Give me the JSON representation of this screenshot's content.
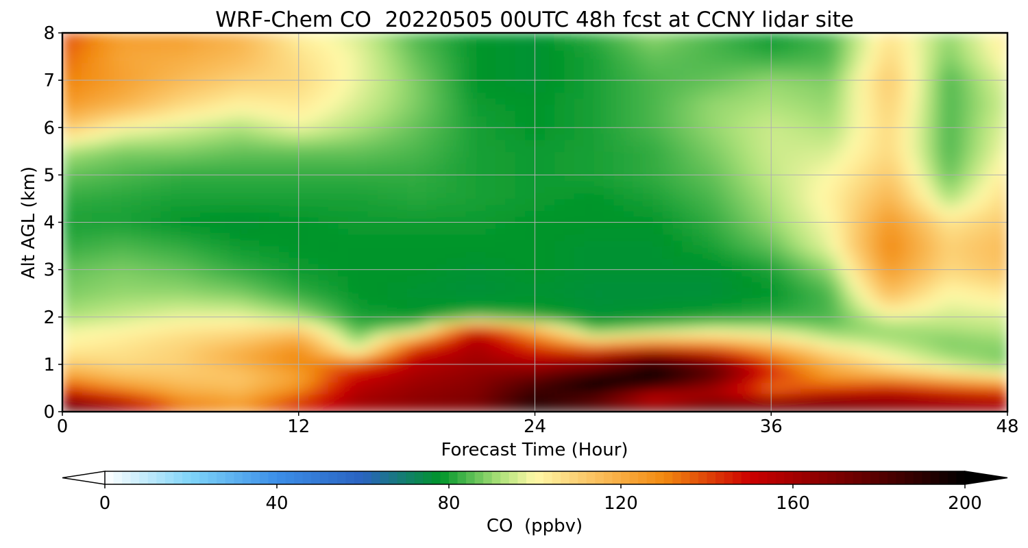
{
  "chart_data": {
    "type": "heatmap",
    "title": "WRF-Chem CO  20220505 00UTC 48h fcst at CCNY lidar site",
    "xlabel": "Forecast Time (Hour)",
    "ylabel": "Alt AGL (km)",
    "xlim": [
      0,
      48
    ],
    "ylim": [
      0,
      8
    ],
    "x_ticks": [
      0,
      12,
      24,
      36,
      48
    ],
    "y_ticks": [
      0,
      1,
      2,
      3,
      4,
      5,
      6,
      7,
      8
    ],
    "grid": true,
    "x": [
      0,
      3,
      6,
      9,
      12,
      15,
      18,
      21,
      24,
      27,
      30,
      33,
      36,
      39,
      42,
      45,
      48
    ],
    "y": [
      0,
      0.25,
      0.5,
      0.75,
      1,
      1.25,
      1.5,
      1.75,
      2,
      2.5,
      3,
      3.5,
      4,
      4.5,
      5,
      5.5,
      6,
      6.5,
      7,
      7.5,
      8
    ],
    "z": [
      [
        190,
        170,
        138,
        130,
        150,
        163,
        168,
        172,
        195,
        200,
        200,
        200,
        190,
        178,
        170,
        168,
        166
      ],
      [
        165,
        150,
        128,
        122,
        140,
        160,
        166,
        170,
        190,
        170,
        140,
        160,
        160,
        168,
        165,
        160,
        155
      ],
      [
        142,
        128,
        118,
        115,
        128,
        156,
        164,
        168,
        185,
        200,
        180,
        160,
        130,
        140,
        148,
        140,
        135
      ],
      [
        125,
        115,
        112,
        112,
        122,
        150,
        160,
        166,
        175,
        190,
        200,
        180,
        145,
        125,
        120,
        112,
        105
      ],
      [
        112,
        108,
        110,
        118,
        130,
        140,
        156,
        162,
        160,
        170,
        190,
        175,
        140,
        118,
        104,
        95,
        88
      ],
      [
        105,
        106,
        110,
        120,
        130,
        100,
        150,
        160,
        148,
        150,
        165,
        150,
        128,
        108,
        98,
        90,
        88
      ],
      [
        100,
        104,
        108,
        112,
        122,
        90,
        128,
        158,
        135,
        110,
        118,
        116,
        108,
        96,
        92,
        88,
        90
      ],
      [
        98,
        100,
        104,
        106,
        110,
        84,
        92,
        150,
        118,
        84,
        90,
        95,
        94,
        88,
        90,
        92,
        94
      ],
      [
        92,
        95,
        98,
        98,
        92,
        80,
        78,
        82,
        80,
        77,
        78,
        80,
        82,
        84,
        98,
        95,
        96
      ],
      [
        88,
        90,
        90,
        88,
        82,
        78,
        77,
        76,
        77,
        76,
        76,
        76,
        78,
        84,
        115,
        100,
        104
      ],
      [
        86,
        88,
        86,
        82,
        79,
        78,
        78,
        77,
        78,
        77,
        77,
        77,
        80,
        90,
        125,
        108,
        114
      ],
      [
        82,
        84,
        82,
        79,
        78,
        78,
        78,
        78,
        78,
        77,
        77,
        80,
        86,
        98,
        130,
        110,
        116
      ],
      [
        80,
        80,
        78,
        77,
        78,
        79,
        79,
        79,
        78,
        78,
        78,
        82,
        90,
        100,
        126,
        105,
        112
      ],
      [
        82,
        81,
        80,
        80,
        80,
        80,
        81,
        80,
        79,
        78,
        80,
        84,
        92,
        102,
        118,
        92,
        108
      ],
      [
        86,
        84,
        82,
        82,
        82,
        82,
        82,
        80,
        79,
        80,
        82,
        86,
        94,
        100,
        112,
        86,
        104
      ],
      [
        92,
        88,
        88,
        86,
        86,
        86,
        84,
        80,
        79,
        80,
        82,
        88,
        95,
        96,
        108,
        84,
        100
      ],
      [
        112,
        100,
        96,
        92,
        98,
        92,
        86,
        80,
        78,
        80,
        84,
        90,
        95,
        92,
        108,
        84,
        98
      ],
      [
        126,
        118,
        108,
        102,
        104,
        96,
        88,
        79,
        78,
        80,
        84,
        90,
        92,
        90,
        110,
        84,
        96
      ],
      [
        132,
        124,
        116,
        110,
        108,
        98,
        88,
        78,
        77,
        80,
        84,
        86,
        90,
        88,
        112,
        84,
        98
      ],
      [
        136,
        122,
        120,
        116,
        106,
        98,
        86,
        78,
        77,
        80,
        86,
        84,
        82,
        84,
        108,
        88,
        102
      ],
      [
        140,
        125,
        125,
        118,
        102,
        96,
        84,
        78,
        77,
        82,
        90,
        84,
        78,
        84,
        105,
        90,
        104
      ]
    ],
    "colorbar": {
      "label": "CO  (ppbv)",
      "min": 0,
      "max": 200,
      "ticks": [
        0,
        40,
        80,
        120,
        160,
        200
      ],
      "extend": "both",
      "orientation": "horizontal",
      "stops": [
        {
          "v": 0,
          "c": "#ffffff"
        },
        {
          "v": 20,
          "c": "#7fd4f8"
        },
        {
          "v": 40,
          "c": "#3c8ee8"
        },
        {
          "v": 60,
          "c": "#2a63c0"
        },
        {
          "v": 78,
          "c": "#00952a"
        },
        {
          "v": 92,
          "c": "#aee27a"
        },
        {
          "v": 100,
          "c": "#fff9a8"
        },
        {
          "v": 112,
          "c": "#fbc86a"
        },
        {
          "v": 130,
          "c": "#f28a10"
        },
        {
          "v": 150,
          "c": "#cc0000"
        },
        {
          "v": 175,
          "c": "#6a0000"
        },
        {
          "v": 200,
          "c": "#000000"
        }
      ]
    }
  }
}
